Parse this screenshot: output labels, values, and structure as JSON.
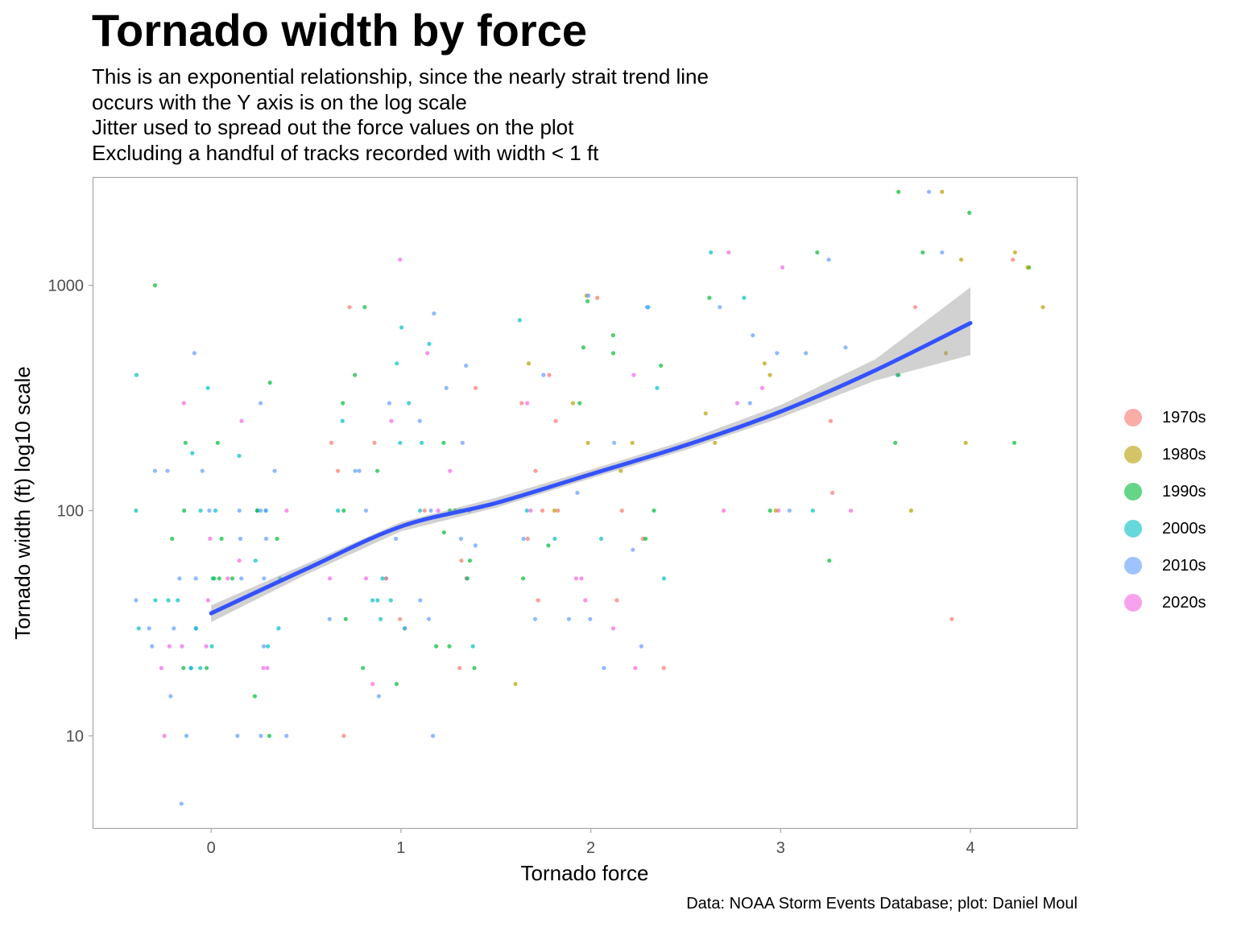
{
  "chart_data": {
    "type": "scatter",
    "title": "Tornado width by force",
    "subtitle": [
      "This is an exponential relationship, since the nearly strait trend line",
      "occurs with the Y axis is on the log scale",
      "Jitter used to spread out the force values on the plot",
      "Excluding a handful of tracks recorded with width < 1 ft"
    ],
    "xlabel": "Tornado force",
    "ylabel": "Tornado width (ft) log10 scale",
    "caption": "Data: NOAA Storm Events Database; plot: Daniel Moul",
    "x_ticks": [
      "0",
      "1",
      "2",
      "3",
      "4"
    ],
    "x_tick_values": [
      0,
      1,
      2,
      3,
      4
    ],
    "y_ticks": [
      "10",
      "100",
      "1000"
    ],
    "y_tick_values": [
      10,
      100,
      1000
    ],
    "y_scale": "log10",
    "xlim": [
      -0.62,
      4.56
    ],
    "ylim": [
      3.9,
      3000
    ],
    "legend_position": "right",
    "colors": {
      "1970s": "#F8766D",
      "1980s": "#B79F00",
      "1990s": "#00BA38",
      "2000s": "#00BFC4",
      "2010s": "#619CFF",
      "2020s": "#F564E3"
    },
    "legend": [
      "1970s",
      "1980s",
      "1990s",
      "2000s",
      "2010s",
      "2020s"
    ],
    "trend": {
      "x": [
        0,
        0.5,
        1,
        1.5,
        2,
        2.5,
        3,
        3.5,
        4
      ],
      "y": [
        35,
        55,
        85,
        108,
        145,
        195,
        275,
        420,
        680
      ],
      "ci_low": [
        32,
        52,
        81,
        103,
        139,
        186,
        258,
        378,
        490
      ],
      "ci_high": [
        38,
        58,
        89,
        114,
        152,
        205,
        294,
        470,
        980
      ]
    },
    "groups": [
      {
        "force": 0,
        "decades": [
          "1990s",
          "2000s",
          "2010s",
          "2020s"
        ],
        "widths": [
          5,
          10,
          10,
          10,
          10,
          10,
          10,
          15,
          15,
          20,
          20,
          20,
          20,
          20,
          20,
          20,
          20,
          25,
          25,
          25,
          25,
          25,
          25,
          25,
          30,
          30,
          30,
          30,
          30,
          30,
          40,
          40,
          40,
          40,
          40,
          50,
          50,
          50,
          50,
          50,
          50,
          50,
          50,
          50,
          50,
          60,
          60,
          75,
          75,
          75,
          75,
          75,
          75,
          100,
          100,
          100,
          100,
          100,
          100,
          100,
          100,
          100,
          100,
          100,
          100,
          150,
          150,
          150,
          150,
          175,
          180,
          200,
          200,
          250,
          300,
          300,
          350,
          370,
          400,
          500,
          1000
        ]
      },
      {
        "force": 1,
        "decades": [
          "1970s",
          "1990s",
          "2000s",
          "2010s",
          "2020s"
        ],
        "widths": [
          10,
          10,
          15,
          17,
          17,
          20,
          20,
          20,
          25,
          25,
          25,
          30,
          30,
          33,
          33,
          33,
          33,
          33,
          40,
          40,
          40,
          40,
          50,
          50,
          50,
          50,
          50,
          50,
          50,
          60,
          60,
          70,
          75,
          75,
          80,
          100,
          100,
          100,
          100,
          100,
          100,
          100,
          100,
          100,
          100,
          100,
          100,
          150,
          150,
          150,
          150,
          150,
          200,
          200,
          200,
          200,
          200,
          200,
          250,
          250,
          250,
          300,
          300,
          300,
          350,
          350,
          400,
          440,
          450,
          500,
          550,
          650,
          750,
          800,
          800,
          1300
        ]
      },
      {
        "force": 2,
        "decades": [
          "1970s",
          "1980s",
          "1990s",
          "2000s",
          "2010s",
          "2020s"
        ],
        "widths": [
          17,
          20,
          20,
          20,
          25,
          30,
          33,
          33,
          33,
          40,
          40,
          40,
          50,
          50,
          50,
          50,
          67,
          70,
          75,
          75,
          75,
          75,
          75,
          75,
          100,
          100,
          100,
          100,
          100,
          100,
          100,
          120,
          150,
          150,
          200,
          200,
          200,
          250,
          300,
          300,
          300,
          300,
          350,
          400,
          400,
          400,
          440,
          450,
          500,
          530,
          600,
          700,
          800,
          800,
          850,
          880,
          900,
          900
        ]
      },
      {
        "force": 3,
        "decades": [
          "1970s",
          "1980s",
          "1990s",
          "2000s",
          "2010s",
          "2020s"
        ],
        "widths": [
          60,
          100,
          100,
          100,
          100,
          100,
          100,
          100,
          120,
          200,
          250,
          270,
          300,
          300,
          350,
          400,
          450,
          500,
          500,
          530,
          600,
          800,
          880,
          880,
          1200,
          1300,
          1400,
          1400,
          1400
        ]
      },
      {
        "force": 4,
        "decades": [
          "1970s",
          "1980s",
          "1990s",
          "2010s"
        ],
        "widths": [
          33,
          100,
          200,
          200,
          200,
          400,
          400,
          500,
          800,
          800,
          1200,
          1200,
          1300,
          1300,
          1400,
          1400,
          1400,
          2100,
          2600,
          2600,
          2600
        ]
      }
    ]
  }
}
